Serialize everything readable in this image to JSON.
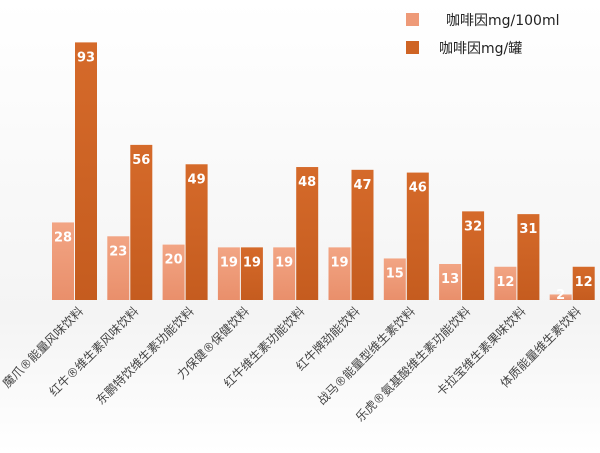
{
  "chart_data": {
    "type": "bar",
    "categories": [
      "魔爪®能量风味饮料",
      "红牛®维生素风味饮料",
      "东鹏特饮维生素功能饮料",
      "力保健®保健饮料",
      "红牛维生素功能饮料",
      "红牛牌劲能饮料",
      "战马®能量型维生素饮料",
      "乐虎®氨基酸维生素功能饮料",
      "卡拉宝维生素果味饮料",
      "体质能量维生素饮料"
    ],
    "series": [
      {
        "name": "咖啡因mg/100ml",
        "color": "#ee9a78",
        "values": [
          28,
          23,
          20,
          19,
          19,
          19,
          15,
          13,
          12,
          2
        ]
      },
      {
        "name": "咖啡因mg/罐",
        "color": "#cf6424",
        "values": [
          93,
          56,
          49,
          19,
          48,
          47,
          46,
          32,
          31,
          12
        ]
      }
    ],
    "ylim": [
      0,
      100
    ],
    "grid": false,
    "legend": "top-right",
    "data_labels": true
  }
}
